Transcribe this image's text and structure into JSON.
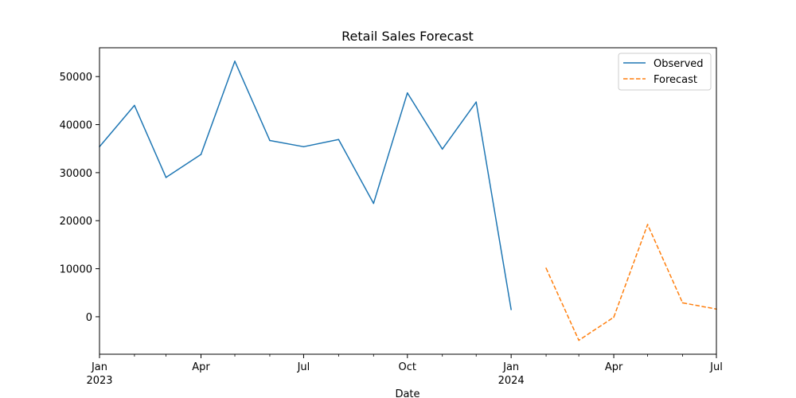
{
  "chart_data": {
    "type": "line",
    "title": "Retail Sales Forecast",
    "xlabel": "Date",
    "ylabel": "",
    "xlim": [
      "2023-01-01",
      "2024-07-01"
    ],
    "ylim": [
      -7800,
      56000
    ],
    "x_ticks": [
      {
        "date": "2023-01-01",
        "label": "Jan",
        "year": "2023"
      },
      {
        "date": "2023-04-01",
        "label": "Apr",
        "year": ""
      },
      {
        "date": "2023-07-01",
        "label": "Jul",
        "year": ""
      },
      {
        "date": "2023-10-01",
        "label": "Oct",
        "year": ""
      },
      {
        "date": "2024-01-01",
        "label": "Jan",
        "year": "2024"
      },
      {
        "date": "2024-04-01",
        "label": "Apr",
        "year": ""
      },
      {
        "date": "2024-07-01",
        "label": "Jul",
        "year": ""
      }
    ],
    "x_minor_ticks": [
      "2023-02-01",
      "2023-03-01",
      "2023-05-01",
      "2023-06-01",
      "2023-08-01",
      "2023-09-01",
      "2023-11-01",
      "2023-12-01",
      "2024-02-01",
      "2024-03-01",
      "2024-05-01",
      "2024-06-01"
    ],
    "y_ticks": [
      0,
      10000,
      20000,
      30000,
      40000,
      50000
    ],
    "grid": false,
    "legend_position": "upper right",
    "series": [
      {
        "name": "Observed",
        "color": "#1f77b4",
        "style": "solid",
        "x": [
          "2023-01-01",
          "2023-02-01",
          "2023-03-01",
          "2023-04-01",
          "2023-05-01",
          "2023-06-01",
          "2023-07-01",
          "2023-08-01",
          "2023-09-01",
          "2023-10-01",
          "2023-11-01",
          "2023-12-01",
          "2024-01-01"
        ],
        "values": [
          35400,
          44000,
          29000,
          33800,
          53200,
          36700,
          35400,
          36900,
          23600,
          46600,
          34900,
          44700,
          1500
        ]
      },
      {
        "name": "Forecast",
        "color": "#ff7f0e",
        "style": "dashed",
        "x": [
          "2024-02-01",
          "2024-03-01",
          "2024-04-01",
          "2024-05-01",
          "2024-06-01",
          "2024-07-01"
        ],
        "values": [
          10100,
          -4900,
          -100,
          19200,
          2900,
          1600
        ]
      }
    ]
  }
}
